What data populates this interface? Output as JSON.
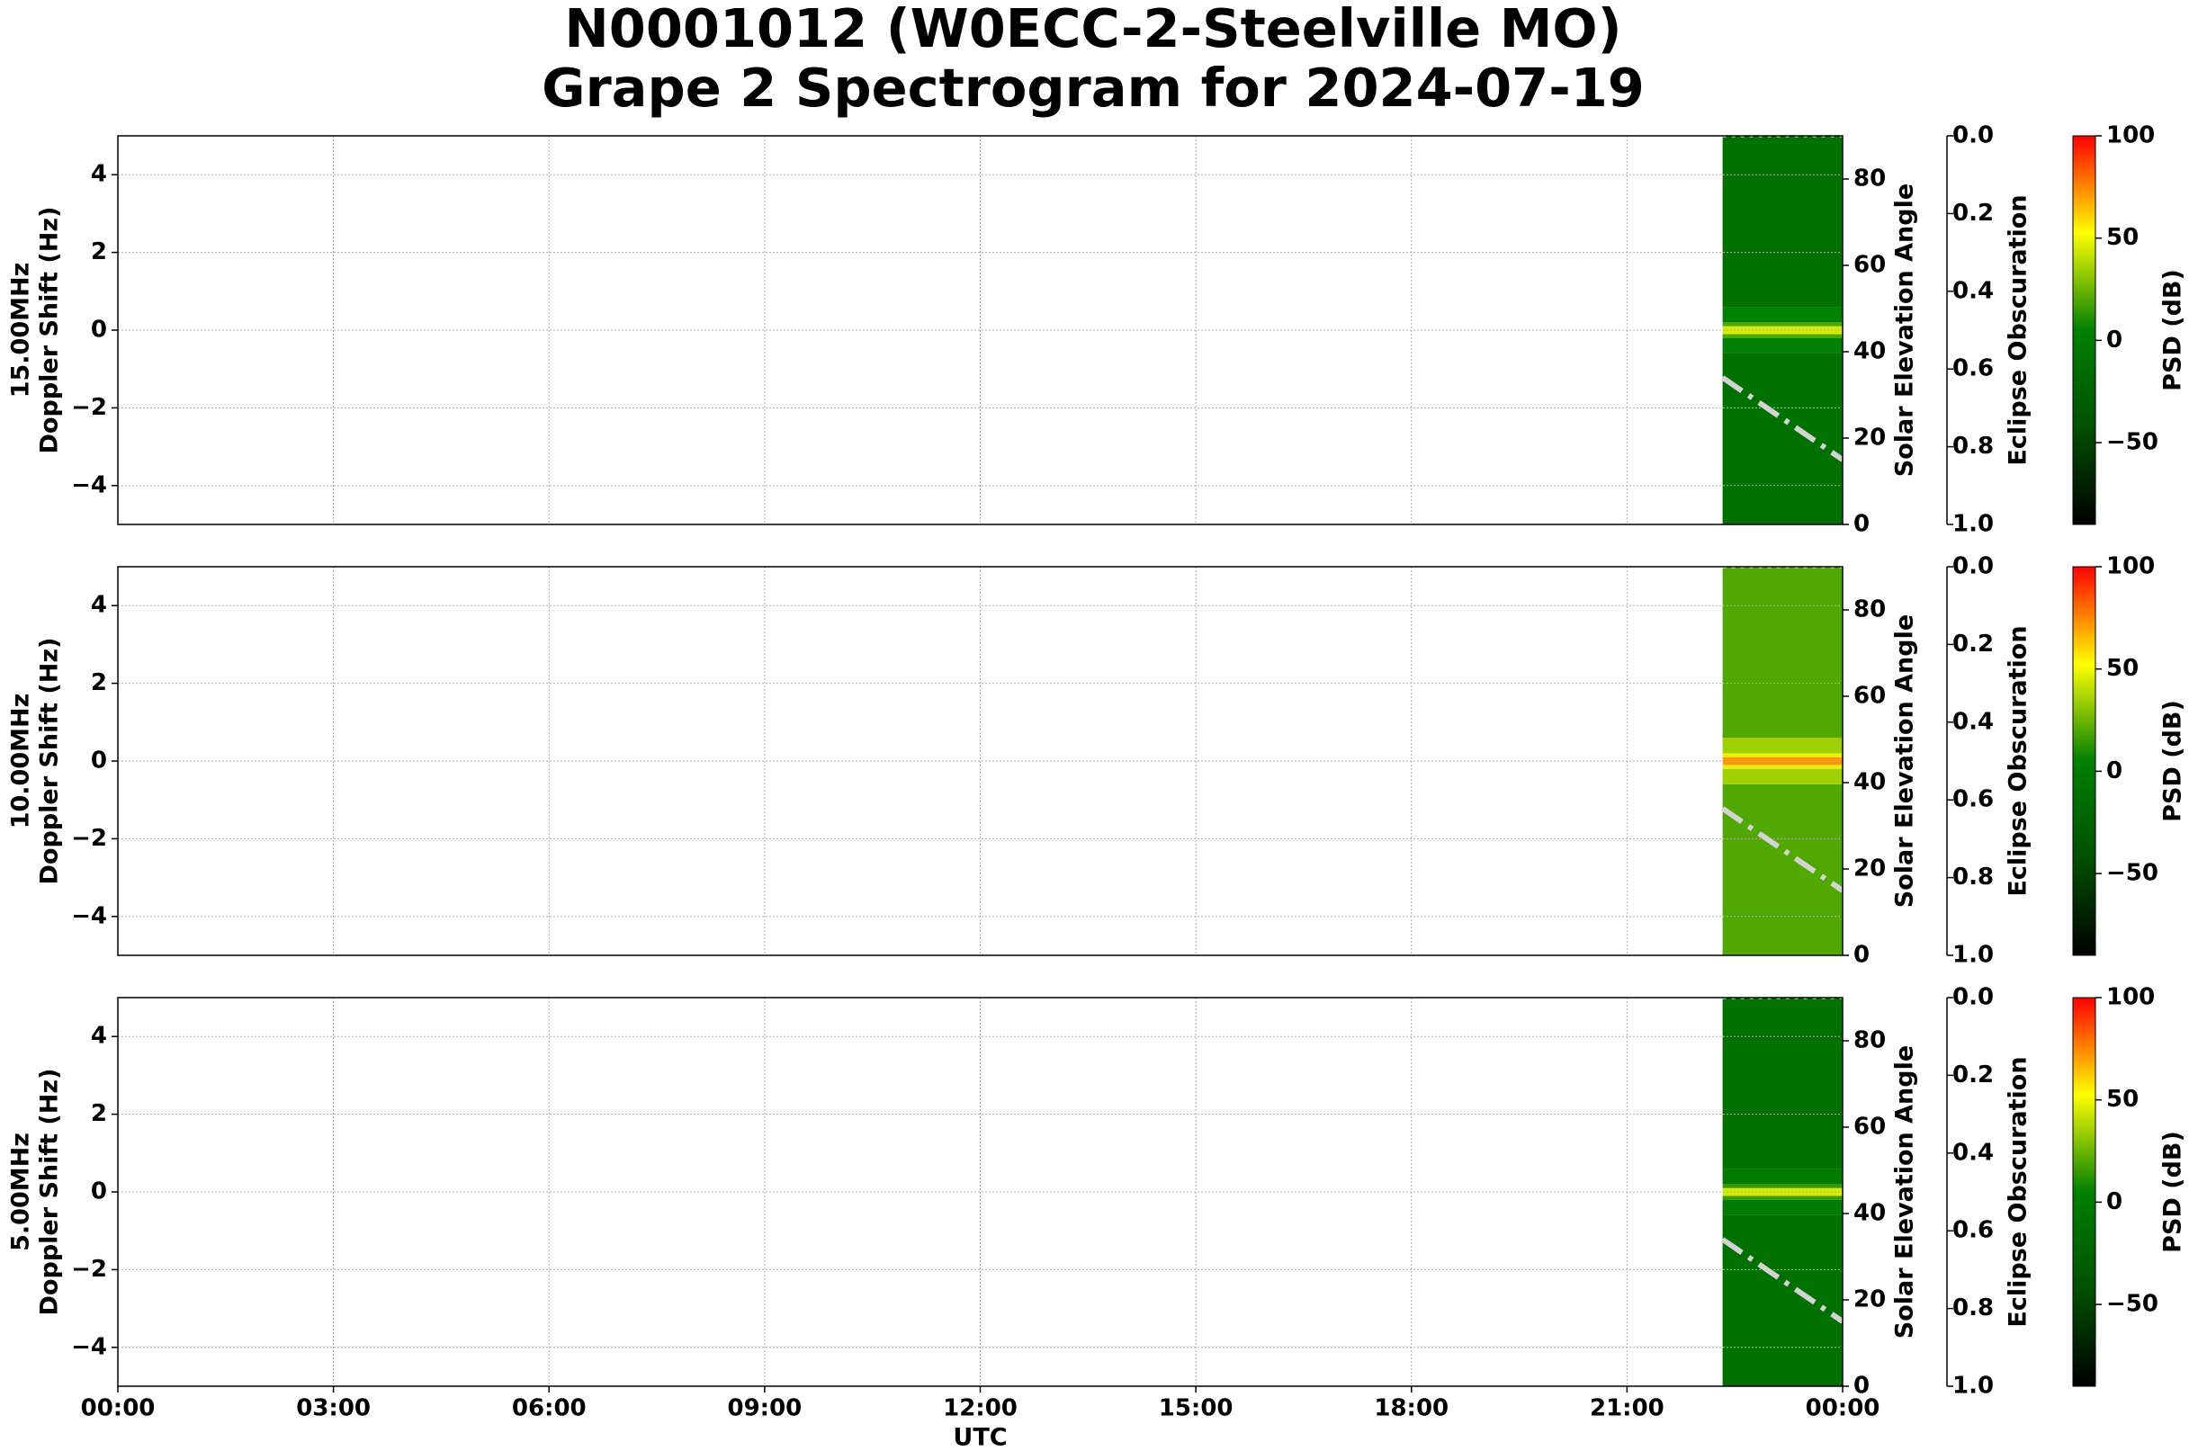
{
  "title": [
    "N0001012 (W0ECC-2-Steelville MO)",
    "Grape 2 Spectrogram for 2024-07-19"
  ],
  "chart_data": [
    {
      "type": "spectrogram",
      "ylabel": [
        "15.00MHz",
        "Doppler Shift (Hz)"
      ],
      "xlim": [
        0,
        24
      ],
      "xticks": [
        0,
        3,
        6,
        9,
        12,
        15,
        18,
        21,
        24
      ],
      "ylim": [
        -5,
        5
      ],
      "yticks": [
        {
          "value": -4,
          "label": "−4"
        },
        {
          "value": -2,
          "label": "−2"
        },
        0,
        2,
        4
      ],
      "y2label": "Solar Elevation Angle",
      "y2lim": [
        0,
        90
      ],
      "y2ticks": [
        0,
        20,
        40,
        60,
        80
      ],
      "y3label": "Eclipse Obscuration",
      "y3lim": [
        1,
        0
      ],
      "y3ticks": [
        {
          "value": 0,
          "label": "0.0"
        },
        0.2,
        0.4,
        0.6,
        0.8,
        {
          "value": 1,
          "label": "1.0"
        }
      ],
      "clabel": "PSD (dB)",
      "clim": [
        -90,
        100
      ],
      "cticks": [
        {
          "value": -50,
          "label": "−50"
        },
        0,
        50,
        100
      ],
      "colormap": [
        "#000000",
        "#005000",
        "#008000",
        "#ffff00",
        "#ff0000"
      ],
      "grid": true,
      "time_range": [
        22.33,
        24
      ],
      "doppler_edges": [
        -5,
        -0.6,
        -0.2,
        -0.1,
        0.1,
        0.2,
        0.6,
        5
      ],
      "psd": [
        -10,
        5,
        20,
        45,
        20,
        5,
        -10
      ],
      "series": [
        {
          "x": [
            22.33,
            24
          ],
          "values": [
            34,
            15
          ],
          "axis": "y2",
          "color": "#d3d3d3",
          "style": "dashdot"
        },
        {
          "x": [
            22.33,
            24
          ],
          "values": [
            0,
            0
          ],
          "axis": "y3",
          "color": "#ffffff",
          "style": "dotted"
        }
      ]
    },
    {
      "type": "spectrogram",
      "ylabel": [
        "10.00MHz",
        "Doppler Shift (Hz)"
      ],
      "xlim": [
        0,
        24
      ],
      "xticks": [
        0,
        3,
        6,
        9,
        12,
        15,
        18,
        21,
        24
      ],
      "ylim": [
        -5,
        5
      ],
      "yticks": [
        {
          "value": -4,
          "label": "−4"
        },
        {
          "value": -2,
          "label": "−2"
        },
        0,
        2,
        4
      ],
      "y2label": "Solar Elevation Angle",
      "y2lim": [
        0,
        90
      ],
      "y2ticks": [
        0,
        20,
        40,
        60,
        80
      ],
      "y3label": "Eclipse Obscuration",
      "y3lim": [
        1,
        0
      ],
      "y3ticks": [
        {
          "value": 0,
          "label": "0.0"
        },
        0.2,
        0.4,
        0.6,
        0.8,
        {
          "value": 1,
          "label": "1.0"
        }
      ],
      "clabel": "PSD (dB)",
      "clim": [
        -90,
        100
      ],
      "cticks": [
        {
          "value": -50,
          "label": "−50"
        },
        0,
        50,
        100
      ],
      "colormap": [
        "#000000",
        "#005000",
        "#008000",
        "#ffff00",
        "#ff0000"
      ],
      "grid": true,
      "time_range": [
        22.33,
        24
      ],
      "doppler_edges": [
        -5,
        -0.6,
        -0.2,
        -0.1,
        0.1,
        0.2,
        0.6,
        5
      ],
      "psd": [
        20,
        35,
        48,
        72,
        48,
        35,
        20
      ],
      "series": [
        {
          "x": [
            22.33,
            24
          ],
          "values": [
            34,
            15
          ],
          "axis": "y2",
          "color": "#d3d3d3",
          "style": "dashdot"
        },
        {
          "x": [
            22.33,
            24
          ],
          "values": [
            0,
            0
          ],
          "axis": "y3",
          "color": "#ffffff",
          "style": "dotted"
        }
      ]
    },
    {
      "type": "spectrogram",
      "ylabel": [
        "5.00MHz",
        "Doppler Shift (Hz)"
      ],
      "xlim": [
        0,
        24
      ],
      "xticks": [
        {
          "value": 0,
          "label": "00:00"
        },
        {
          "value": 3,
          "label": "03:00"
        },
        {
          "value": 6,
          "label": "06:00"
        },
        {
          "value": 9,
          "label": "09:00"
        },
        {
          "value": 12,
          "label": "12:00"
        },
        {
          "value": 15,
          "label": "15:00"
        },
        {
          "value": 18,
          "label": "18:00"
        },
        {
          "value": 21,
          "label": "21:00"
        },
        {
          "value": 24,
          "label": "00:00"
        }
      ],
      "xlabel": "UTC",
      "ylim": [
        -5,
        5
      ],
      "yticks": [
        {
          "value": -4,
          "label": "−4"
        },
        {
          "value": -2,
          "label": "−2"
        },
        0,
        2,
        4
      ],
      "y2label": "Solar Elevation Angle",
      "y2lim": [
        0,
        90
      ],
      "y2ticks": [
        0,
        20,
        40,
        60,
        80
      ],
      "y3label": "Eclipse Obscuration",
      "y3lim": [
        1,
        0
      ],
      "y3ticks": [
        {
          "value": 0,
          "label": "0.0"
        },
        0.2,
        0.4,
        0.6,
        0.8,
        {
          "value": 1,
          "label": "1.0"
        }
      ],
      "clabel": "PSD (dB)",
      "clim": [
        -90,
        100
      ],
      "cticks": [
        {
          "value": -50,
          "label": "−50"
        },
        0,
        50,
        100
      ],
      "colormap": [
        "#000000",
        "#005000",
        "#008000",
        "#ffff00",
        "#ff0000"
      ],
      "grid": true,
      "time_range": [
        22.33,
        24
      ],
      "doppler_edges": [
        -5,
        -0.6,
        -0.2,
        -0.1,
        0.1,
        0.2,
        0.6,
        5
      ],
      "psd": [
        -10,
        0,
        15,
        45,
        15,
        0,
        -10
      ],
      "series": [
        {
          "x": [
            22.33,
            24
          ],
          "values": [
            34,
            15
          ],
          "axis": "y2",
          "color": "#d3d3d3",
          "style": "dashdot"
        },
        {
          "x": [
            22.33,
            24
          ],
          "values": [
            0,
            0
          ],
          "axis": "y3",
          "color": "#ffffff",
          "style": "dotted"
        }
      ]
    }
  ]
}
